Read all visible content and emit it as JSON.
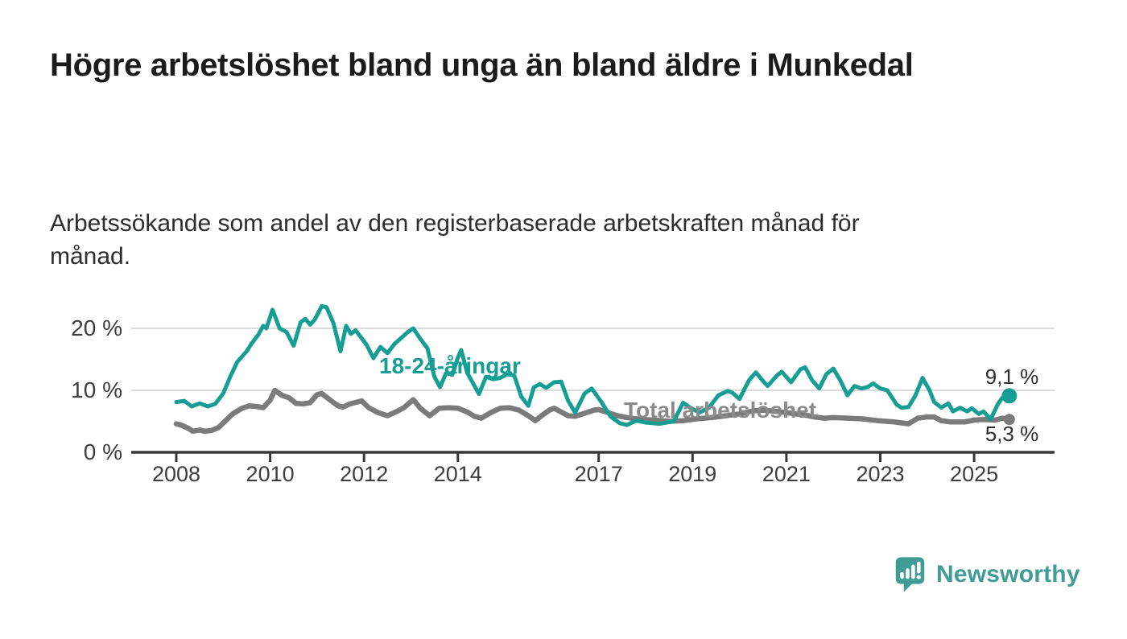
{
  "page": {
    "title": "Högre arbetslöshet bland unga än bland äldre i Munkedal",
    "subtitle": "Arbetssökande som andel av den registerbaserade arbetskraften månad för månad."
  },
  "branding": {
    "logo_text": "Newsworthy",
    "logo_icon": "newsworthy-bubble-bar-chart-icon",
    "brand_color": "#3f9d95"
  },
  "colors": {
    "youth_line": "#179e94",
    "total_line": "#7b7b7b",
    "total_label": "#8a8a8a",
    "axis": "#383838",
    "grid": "#dcdcdc",
    "tick_text": "#3d3d3d",
    "value_text": "#2e2e2e"
  },
  "chart_data": {
    "type": "line",
    "title": "Högre arbetslöshet bland unga än bland äldre i Munkedal",
    "subtitle": "Arbetssökande som andel av den registerbaserade arbetskraften månad för månad.",
    "unit": "%",
    "grid": "horizontal",
    "legend_position": "inline-labels",
    "xlim": [
      2008,
      2026
    ],
    "ylim": [
      0,
      24.5
    ],
    "x_ticks": [
      {
        "value": 2008,
        "label": "2008"
      },
      {
        "value": 2010,
        "label": "2010"
      },
      {
        "value": 2012,
        "label": "2012"
      },
      {
        "value": 2014,
        "label": "2014"
      },
      {
        "value": 2017,
        "label": "2017"
      },
      {
        "value": 2019,
        "label": "2019"
      },
      {
        "value": 2021,
        "label": "2021"
      },
      {
        "value": 2023,
        "label": "2023"
      },
      {
        "value": 2025,
        "label": "2025"
      }
    ],
    "y_ticks": [
      {
        "value": 0,
        "label": "0 %"
      },
      {
        "value": 10,
        "label": "10 %"
      },
      {
        "value": 20,
        "label": "20 %"
      }
    ],
    "series": [
      {
        "name": "18-24-åringar",
        "color": "#179e94",
        "end_value": 9.1,
        "end_value_label": "9,1 %",
        "points": [
          [
            2008.0,
            8.1
          ],
          [
            2008.17,
            8.3
          ],
          [
            2008.33,
            7.4
          ],
          [
            2008.5,
            7.9
          ],
          [
            2008.67,
            7.4
          ],
          [
            2008.83,
            7.8
          ],
          [
            2009.0,
            9.5
          ],
          [
            2009.15,
            12.2
          ],
          [
            2009.3,
            14.6
          ],
          [
            2009.5,
            16.3
          ],
          [
            2009.6,
            17.5
          ],
          [
            2009.75,
            19.0
          ],
          [
            2009.85,
            20.4
          ],
          [
            2009.92,
            20.0
          ],
          [
            2010.05,
            23.0
          ],
          [
            2010.2,
            20.0
          ],
          [
            2010.35,
            19.4
          ],
          [
            2010.5,
            17.2
          ],
          [
            2010.65,
            21.0
          ],
          [
            2010.75,
            21.5
          ],
          [
            2010.85,
            20.6
          ],
          [
            2010.95,
            21.4
          ],
          [
            2011.1,
            23.6
          ],
          [
            2011.2,
            23.4
          ],
          [
            2011.35,
            20.8
          ],
          [
            2011.5,
            16.3
          ],
          [
            2011.62,
            20.4
          ],
          [
            2011.72,
            19.1
          ],
          [
            2011.82,
            19.7
          ],
          [
            2011.92,
            18.7
          ],
          [
            2012.05,
            17.4
          ],
          [
            2012.2,
            15.2
          ],
          [
            2012.35,
            17.0
          ],
          [
            2012.5,
            16.0
          ],
          [
            2012.65,
            17.5
          ],
          [
            2012.8,
            18.5
          ],
          [
            2012.95,
            19.5
          ],
          [
            2013.05,
            20.0
          ],
          [
            2013.2,
            18.3
          ],
          [
            2013.35,
            16.8
          ],
          [
            2013.5,
            12.2
          ],
          [
            2013.62,
            10.5
          ],
          [
            2013.75,
            12.8
          ],
          [
            2013.88,
            12.5
          ],
          [
            2014.0,
            15.3
          ],
          [
            2014.07,
            16.5
          ],
          [
            2014.2,
            12.8
          ],
          [
            2014.45,
            9.4
          ],
          [
            2014.6,
            12.2
          ],
          [
            2014.75,
            11.8
          ],
          [
            2014.9,
            12.0
          ],
          [
            2015.05,
            12.6
          ],
          [
            2015.2,
            12.4
          ],
          [
            2015.35,
            9.0
          ],
          [
            2015.5,
            7.5
          ],
          [
            2015.62,
            10.5
          ],
          [
            2015.75,
            11.0
          ],
          [
            2015.88,
            10.4
          ],
          [
            2016.05,
            11.3
          ],
          [
            2016.2,
            11.4
          ],
          [
            2016.35,
            8.3
          ],
          [
            2016.5,
            6.4
          ],
          [
            2016.7,
            9.5
          ],
          [
            2016.85,
            10.3
          ],
          [
            2017.05,
            8.2
          ],
          [
            2017.25,
            5.8
          ],
          [
            2017.45,
            4.7
          ],
          [
            2017.6,
            4.4
          ],
          [
            2017.8,
            5.1
          ],
          [
            2018.0,
            4.8
          ],
          [
            2018.3,
            4.6
          ],
          [
            2018.6,
            5.0
          ],
          [
            2018.8,
            8.0
          ],
          [
            2018.95,
            7.2
          ],
          [
            2019.15,
            6.4
          ],
          [
            2019.35,
            7.2
          ],
          [
            2019.55,
            9.2
          ],
          [
            2019.75,
            9.9
          ],
          [
            2019.85,
            9.6
          ],
          [
            2020.0,
            8.6
          ],
          [
            2020.2,
            11.6
          ],
          [
            2020.35,
            12.9
          ],
          [
            2020.5,
            11.5
          ],
          [
            2020.6,
            10.7
          ],
          [
            2020.8,
            12.4
          ],
          [
            2020.9,
            13.0
          ],
          [
            2021.1,
            11.3
          ],
          [
            2021.3,
            13.4
          ],
          [
            2021.4,
            13.7
          ],
          [
            2021.55,
            11.6
          ],
          [
            2021.7,
            10.3
          ],
          [
            2021.85,
            12.6
          ],
          [
            2022.0,
            13.5
          ],
          [
            2022.15,
            11.6
          ],
          [
            2022.3,
            9.2
          ],
          [
            2022.45,
            10.7
          ],
          [
            2022.6,
            10.3
          ],
          [
            2022.72,
            10.5
          ],
          [
            2022.85,
            11.1
          ],
          [
            2023.0,
            10.3
          ],
          [
            2023.15,
            10.0
          ],
          [
            2023.35,
            7.7
          ],
          [
            2023.45,
            7.2
          ],
          [
            2023.6,
            7.3
          ],
          [
            2023.75,
            9.2
          ],
          [
            2023.9,
            12.0
          ],
          [
            2024.05,
            10.0
          ],
          [
            2024.15,
            8.1
          ],
          [
            2024.3,
            7.2
          ],
          [
            2024.45,
            7.9
          ],
          [
            2024.55,
            6.6
          ],
          [
            2024.7,
            7.2
          ],
          [
            2024.85,
            6.6
          ],
          [
            2024.95,
            7.1
          ],
          [
            2025.1,
            6.2
          ],
          [
            2025.2,
            6.6
          ],
          [
            2025.35,
            5.3
          ],
          [
            2025.5,
            7.7
          ],
          [
            2025.6,
            8.8
          ],
          [
            2025.75,
            9.1
          ]
        ]
      },
      {
        "name": "Total arbetslöshet",
        "color": "#7b7b7b",
        "end_value": 5.3,
        "end_value_label": "5,3 %",
        "points": [
          [
            2008.0,
            4.6
          ],
          [
            2008.1,
            4.4
          ],
          [
            2008.25,
            3.9
          ],
          [
            2008.35,
            3.4
          ],
          [
            2008.5,
            3.6
          ],
          [
            2008.6,
            3.4
          ],
          [
            2008.75,
            3.5
          ],
          [
            2008.9,
            4.0
          ],
          [
            2009.05,
            5.1
          ],
          [
            2009.2,
            6.2
          ],
          [
            2009.4,
            7.1
          ],
          [
            2009.55,
            7.5
          ],
          [
            2009.7,
            7.4
          ],
          [
            2009.85,
            7.2
          ],
          [
            2010.0,
            8.4
          ],
          [
            2010.1,
            10.0
          ],
          [
            2010.25,
            9.2
          ],
          [
            2010.4,
            8.8
          ],
          [
            2010.55,
            7.9
          ],
          [
            2010.7,
            7.8
          ],
          [
            2010.85,
            8.0
          ],
          [
            2011.0,
            9.3
          ],
          [
            2011.1,
            9.5
          ],
          [
            2011.3,
            8.3
          ],
          [
            2011.45,
            7.5
          ],
          [
            2011.55,
            7.3
          ],
          [
            2011.7,
            7.8
          ],
          [
            2011.8,
            8.0
          ],
          [
            2011.95,
            8.3
          ],
          [
            2012.1,
            7.2
          ],
          [
            2012.3,
            6.4
          ],
          [
            2012.5,
            5.9
          ],
          [
            2012.7,
            6.6
          ],
          [
            2012.85,
            7.2
          ],
          [
            2013.05,
            8.5
          ],
          [
            2013.2,
            7.1
          ],
          [
            2013.4,
            5.9
          ],
          [
            2013.6,
            7.1
          ],
          [
            2013.8,
            7.2
          ],
          [
            2014.0,
            7.1
          ],
          [
            2014.2,
            6.5
          ],
          [
            2014.35,
            5.8
          ],
          [
            2014.5,
            5.5
          ],
          [
            2014.7,
            6.4
          ],
          [
            2014.9,
            7.1
          ],
          [
            2015.1,
            7.2
          ],
          [
            2015.3,
            6.8
          ],
          [
            2015.5,
            5.9
          ],
          [
            2015.65,
            5.1
          ],
          [
            2015.8,
            6.0
          ],
          [
            2015.95,
            6.8
          ],
          [
            2016.05,
            7.1
          ],
          [
            2016.2,
            6.5
          ],
          [
            2016.35,
            5.9
          ],
          [
            2016.5,
            5.8
          ],
          [
            2016.7,
            6.3
          ],
          [
            2016.9,
            6.8
          ],
          [
            2017.0,
            6.9
          ],
          [
            2017.2,
            6.4
          ],
          [
            2017.4,
            5.9
          ],
          [
            2017.6,
            5.6
          ],
          [
            2017.9,
            5.3
          ],
          [
            2018.2,
            5.2
          ],
          [
            2018.5,
            5.0
          ],
          [
            2018.8,
            5.1
          ],
          [
            2019.1,
            5.4
          ],
          [
            2019.4,
            5.6
          ],
          [
            2019.7,
            5.9
          ],
          [
            2020.0,
            6.2
          ],
          [
            2020.3,
            6.7
          ],
          [
            2020.5,
            6.8
          ],
          [
            2020.8,
            6.6
          ],
          [
            2021.1,
            6.3
          ],
          [
            2021.4,
            6.0
          ],
          [
            2021.6,
            5.7
          ],
          [
            2021.8,
            5.5
          ],
          [
            2022.0,
            5.6
          ],
          [
            2022.3,
            5.5
          ],
          [
            2022.6,
            5.4
          ],
          [
            2022.95,
            5.1
          ],
          [
            2023.3,
            4.9
          ],
          [
            2023.6,
            4.6
          ],
          [
            2023.8,
            5.5
          ],
          [
            2024.0,
            5.7
          ],
          [
            2024.15,
            5.7
          ],
          [
            2024.3,
            5.1
          ],
          [
            2024.5,
            4.9
          ],
          [
            2024.8,
            4.9
          ],
          [
            2025.0,
            5.2
          ],
          [
            2025.2,
            5.3
          ],
          [
            2025.45,
            5.2
          ],
          [
            2025.6,
            5.5
          ],
          [
            2025.75,
            5.3
          ]
        ]
      }
    ]
  }
}
